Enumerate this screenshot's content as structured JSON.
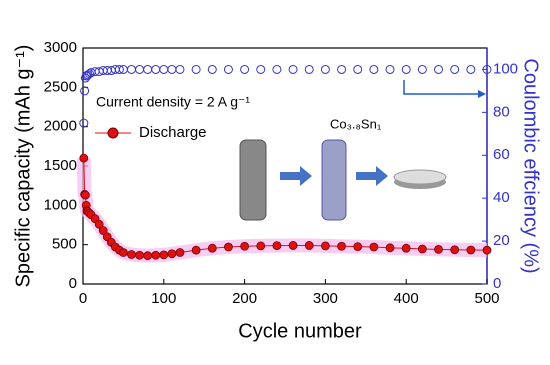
{
  "chart_data": {
    "type": "scatter",
    "xlabel": "Cycle number",
    "ylabel": "Specific capacity (mAh g⁻¹)",
    "y2label": "Coulombic effciency (%)",
    "annotations": [
      "Current density = 2 A g⁻¹",
      "Co₃.₈Sn₁"
    ],
    "legend": "upper left",
    "xlim": [
      0,
      500
    ],
    "xticks": [
      0,
      100,
      200,
      300,
      400,
      500
    ],
    "ylim": [
      0,
      3000
    ],
    "yticks": [
      0,
      500,
      1000,
      1500,
      2000,
      2500,
      3000
    ],
    "y2lim": [
      0,
      110
    ],
    "y2ticks": [
      0,
      20,
      40,
      60,
      80,
      100
    ],
    "x": [
      1,
      2,
      3,
      4,
      5,
      6,
      8,
      10,
      15,
      20,
      25,
      30,
      35,
      40,
      45,
      50,
      60,
      70,
      80,
      90,
      100,
      110,
      120,
      140,
      160,
      180,
      200,
      220,
      240,
      260,
      280,
      300,
      320,
      340,
      360,
      380,
      400,
      420,
      440,
      460,
      480,
      500
    ],
    "series": [
      {
        "name": "Discharge",
        "color": "#dd1111",
        "values": [
          1600,
          1140,
          1130,
          1000,
          930,
          920,
          900,
          880,
          830,
          760,
          680,
          600,
          530,
          470,
          430,
          400,
          375,
          365,
          360,
          365,
          370,
          385,
          400,
          430,
          455,
          470,
          480,
          485,
          488,
          490,
          490,
          485,
          480,
          475,
          470,
          460,
          455,
          445,
          440,
          435,
          432,
          430
        ]
      },
      {
        "color": "#3333cc",
        "axis": "y2",
        "values": [
          75,
          90,
          96,
          97,
          97,
          97.5,
          98,
          98.5,
          99,
          99,
          99.5,
          99.5,
          99.5,
          100,
          100,
          100,
          100,
          100,
          100,
          100,
          100,
          100,
          100,
          100,
          100,
          100,
          100,
          100,
          100,
          100,
          100,
          100,
          100,
          100,
          100,
          100,
          100,
          100,
          100,
          100,
          100,
          100
        ]
      }
    ]
  }
}
